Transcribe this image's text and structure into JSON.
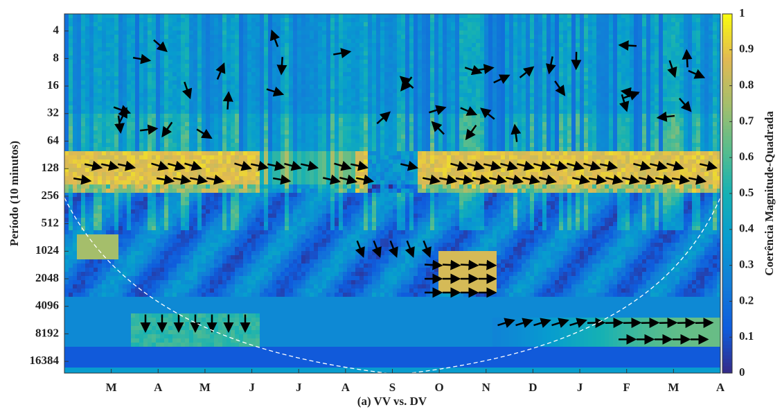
{
  "chart_data": {
    "type": "heatmap",
    "xlabel": "(a) VV vs. DV",
    "ylabel": "Período (10 minutos)",
    "colorbar_label": "Coerência Magnitude-Quadrada",
    "categories": [
      "M",
      "A",
      "M",
      "J",
      "J",
      "A",
      "S",
      "O",
      "N",
      "D",
      "J",
      "F",
      "M",
      "A"
    ],
    "yscale": "log2",
    "ylim": [
      2.6,
      22000
    ],
    "yticks": [
      4,
      8,
      16,
      32,
      64,
      128,
      256,
      512,
      1024,
      2048,
      4096,
      8192,
      16384
    ],
    "colormap": "parula",
    "clim": [
      0,
      1
    ],
    "cticks": [
      0,
      0.1,
      0.2,
      0.3,
      0.4,
      0.5,
      0.6,
      0.7,
      0.8,
      0.9,
      1
    ]
  }
}
